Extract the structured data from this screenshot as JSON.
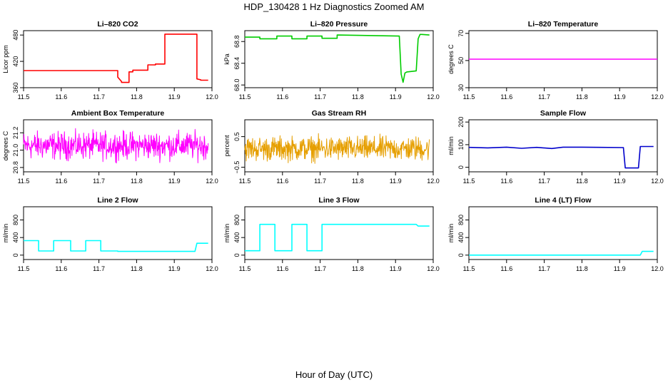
{
  "title": "HDP_130428  1 Hz Diagnostics Zoomed AM",
  "xlabel": "Hour of Day (UTC)",
  "chart_data": [
    {
      "type": "line",
      "title": "Li–820 CO2",
      "ylabel": "Licor ppm",
      "color": "#ff0000",
      "xlim": [
        11.5,
        12.0
      ],
      "ylim": [
        360,
        490
      ],
      "xticks": [
        11.5,
        11.6,
        11.7,
        11.8,
        11.9,
        12.0
      ],
      "yticks": [
        360,
        420,
        480
      ],
      "xtick_labels": [
        "11.5",
        "11.6",
        "11.7",
        "11.8",
        "11.9",
        "12.0"
      ],
      "ytick_labels": [
        "360",
        "420",
        "480"
      ],
      "x": [
        11.5,
        11.75,
        11.75,
        11.76,
        11.76,
        11.78,
        11.78,
        11.79,
        11.79,
        11.8,
        11.8,
        11.83,
        11.83,
        11.85,
        11.85,
        11.875,
        11.875,
        11.96,
        11.96,
        11.97,
        11.97,
        11.99
      ],
      "values": [
        399,
        399,
        384,
        374,
        372,
        372,
        396,
        396,
        400,
        400,
        400,
        400,
        412,
        412,
        414,
        414,
        482,
        482,
        380,
        378,
        377,
        377
      ]
    },
    {
      "type": "line",
      "title": "Li–820 Pressure",
      "ylabel": "kPa",
      "color": "#00cc00",
      "xlim": [
        11.5,
        12.0
      ],
      "ylim": [
        67.95,
        69.0
      ],
      "xticks": [
        11.5,
        11.6,
        11.7,
        11.8,
        11.9,
        12.0
      ],
      "yticks": [
        68.0,
        68.4,
        68.8
      ],
      "xtick_labels": [
        "11.5",
        "11.6",
        "11.7",
        "11.8",
        "11.9",
        "12.0"
      ],
      "ytick_labels": [
        "68.0",
        "68.4",
        "68.8"
      ],
      "x": [
        11.5,
        11.54,
        11.54,
        11.585,
        11.585,
        11.625,
        11.625,
        11.665,
        11.665,
        11.705,
        11.705,
        11.745,
        11.745,
        11.91,
        11.915,
        11.92,
        11.925,
        11.93,
        11.955,
        11.96,
        11.965,
        11.97,
        11.99
      ],
      "values": [
        68.88,
        68.88,
        68.85,
        68.85,
        68.9,
        68.9,
        68.85,
        68.85,
        68.9,
        68.9,
        68.86,
        68.86,
        68.92,
        68.9,
        68.2,
        68.05,
        68.22,
        68.24,
        68.26,
        68.85,
        68.93,
        68.93,
        68.92
      ]
    },
    {
      "type": "line",
      "title": "Li–820 Temperature",
      "ylabel": "degrees C",
      "color": "#ff00ff",
      "xlim": [
        11.5,
        12.0
      ],
      "ylim": [
        30,
        72
      ],
      "xticks": [
        11.5,
        11.6,
        11.7,
        11.8,
        11.9,
        12.0
      ],
      "yticks": [
        30,
        50,
        70
      ],
      "xtick_labels": [
        "11.5",
        "11.6",
        "11.7",
        "11.8",
        "11.9",
        "12.0"
      ],
      "ytick_labels": [
        "30",
        "50",
        "70"
      ],
      "x": [
        11.5,
        12.0
      ],
      "values": [
        51,
        51
      ]
    },
    {
      "type": "line",
      "title": "Ambient Box Temperature",
      "ylabel": "degrees C",
      "color": "#ff00ff",
      "xlim": [
        11.5,
        12.0
      ],
      "ylim": [
        20.75,
        21.35
      ],
      "xticks": [
        11.5,
        11.6,
        11.7,
        11.8,
        11.9,
        12.0
      ],
      "yticks": [
        20.8,
        21.0,
        21.2
      ],
      "xtick_labels": [
        "11.5",
        "11.6",
        "11.7",
        "11.8",
        "11.9",
        "12.0"
      ],
      "ytick_labels": [
        "20.8",
        "21.0",
        "21.2"
      ],
      "x": [
        11.5,
        11.99
      ],
      "values": [
        20.85,
        21.25
      ],
      "noise": true
    },
    {
      "type": "line",
      "title": "Gas Stream RH",
      "ylabel": "percent",
      "color": "#e69f00",
      "xlim": [
        11.5,
        12.0
      ],
      "ylim": [
        -0.65,
        1.05
      ],
      "xticks": [
        11.5,
        11.6,
        11.7,
        11.8,
        11.9,
        12.0
      ],
      "yticks": [
        -0.5,
        0.5
      ],
      "xtick_labels": [
        "11.5",
        "11.6",
        "11.7",
        "11.8",
        "11.9",
        "12.0"
      ],
      "ytick_labels": [
        "−0.5",
        "0.5"
      ],
      "x": [
        11.5,
        11.99
      ],
      "values": [
        -0.4,
        0.6
      ],
      "noise": true
    },
    {
      "type": "line",
      "title": "Sample Flow",
      "ylabel": "ml/min",
      "color": "#0000cc",
      "xlim": [
        11.5,
        12.0
      ],
      "ylim": [
        -20,
        210
      ],
      "xticks": [
        11.5,
        11.6,
        11.7,
        11.8,
        11.9,
        12.0
      ],
      "yticks": [
        0,
        100,
        200
      ],
      "xtick_labels": [
        "11.5",
        "11.6",
        "11.7",
        "11.8",
        "11.9",
        "12.0"
      ],
      "ytick_labels": [
        "0",
        "100",
        "200"
      ],
      "x": [
        11.5,
        11.55,
        11.6,
        11.64,
        11.68,
        11.72,
        11.75,
        11.8,
        11.85,
        11.91,
        11.915,
        11.95,
        11.955,
        11.99
      ],
      "values": [
        88,
        86,
        89,
        84,
        88,
        83,
        89,
        89,
        88,
        87,
        -3,
        -3,
        92,
        92
      ]
    },
    {
      "type": "line",
      "title": "Line 2 Flow",
      "ylabel": "ml/min",
      "color": "#00ffff",
      "xlim": [
        11.5,
        12.0
      ],
      "ylim": [
        -100,
        1100
      ],
      "xticks": [
        11.5,
        11.6,
        11.7,
        11.8,
        11.9,
        12.0
      ],
      "yticks": [
        0,
        400,
        800
      ],
      "xtick_labels": [
        "11.5",
        "11.6",
        "11.7",
        "11.8",
        "11.9",
        "12.0"
      ],
      "ytick_labels": [
        "0",
        "400",
        "800"
      ],
      "x": [
        11.5,
        11.54,
        11.54,
        11.58,
        11.58,
        11.625,
        11.625,
        11.665,
        11.665,
        11.705,
        11.705,
        11.75,
        11.75,
        11.955,
        11.96,
        11.99
      ],
      "values": [
        330,
        330,
        95,
        95,
        330,
        330,
        95,
        95,
        330,
        330,
        95,
        95,
        85,
        85,
        270,
        270
      ]
    },
    {
      "type": "line",
      "title": "Line 3 Flow",
      "ylabel": "ml/min",
      "color": "#00ffff",
      "xlim": [
        11.5,
        12.0
      ],
      "ylim": [
        -100,
        1100
      ],
      "xticks": [
        11.5,
        11.6,
        11.7,
        11.8,
        11.9,
        12.0
      ],
      "yticks": [
        0,
        400,
        800
      ],
      "xtick_labels": [
        "11.5",
        "11.6",
        "11.7",
        "11.8",
        "11.9",
        "12.0"
      ],
      "ytick_labels": [
        "0",
        "400",
        "800"
      ],
      "x": [
        11.5,
        11.54,
        11.54,
        11.58,
        11.58,
        11.625,
        11.625,
        11.665,
        11.665,
        11.705,
        11.705,
        11.955,
        11.96,
        11.99
      ],
      "values": [
        100,
        100,
        700,
        700,
        100,
        100,
        700,
        700,
        100,
        100,
        700,
        700,
        660,
        660
      ]
    },
    {
      "type": "line",
      "title": "Line 4 (LT) Flow",
      "ylabel": "ml/min",
      "color": "#00ffff",
      "xlim": [
        11.5,
        12.0
      ],
      "ylim": [
        -100,
        1100
      ],
      "xticks": [
        11.5,
        11.6,
        11.7,
        11.8,
        11.9,
        12.0
      ],
      "yticks": [
        0,
        400,
        800
      ],
      "xtick_labels": [
        "11.5",
        "11.6",
        "11.7",
        "11.8",
        "11.9",
        "12.0"
      ],
      "ytick_labels": [
        "0",
        "400",
        "800"
      ],
      "x": [
        11.5,
        11.955,
        11.96,
        11.99
      ],
      "values": [
        0,
        0,
        85,
        85
      ]
    }
  ]
}
